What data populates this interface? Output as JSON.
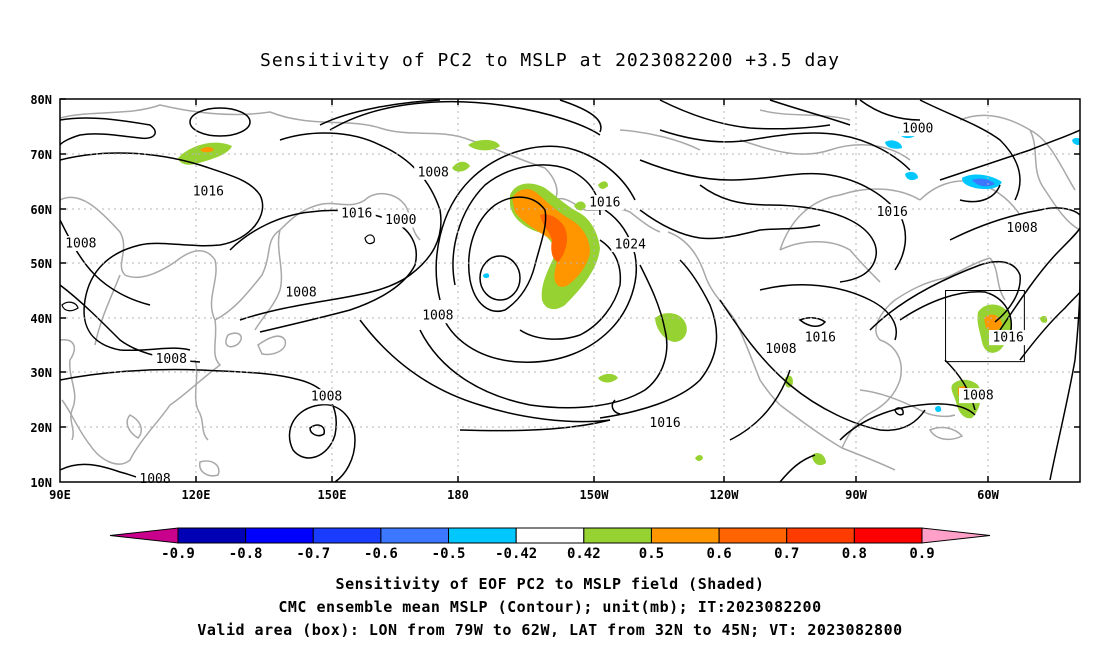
{
  "title": "Sensitivity of PC2 to MSLP at 2023082200 +3.5 day",
  "lat_labels": [
    "80N",
    "70N",
    "60N",
    "50N",
    "40N",
    "30N",
    "20N",
    "10N"
  ],
  "lon_labels": [
    "90E",
    "120E",
    "150E",
    "180",
    "150W",
    "120W",
    "90W",
    "60W"
  ],
  "contour_labels": [
    {
      "text": "1000",
      "lon": -85,
      "lat": 74.5
    },
    {
      "text": "1008",
      "lon": 170.5,
      "lat": 66.5
    },
    {
      "text": "1016",
      "lon": 122,
      "lat": 63
    },
    {
      "text": "1016",
      "lon": 154,
      "lat": 59
    },
    {
      "text": "1016",
      "lon": -152.5,
      "lat": 61
    },
    {
      "text": "1016",
      "lon": -90.5,
      "lat": 59.3
    },
    {
      "text": "1008",
      "lon": -62.5,
      "lat": 56.3
    },
    {
      "text": "1000",
      "lon": 163.5,
      "lat": 57.8
    },
    {
      "text": "1024",
      "lon": -147,
      "lat": 53.3
    },
    {
      "text": "1008",
      "lon": 94.5,
      "lat": 53.5
    },
    {
      "text": "1008",
      "lon": 142,
      "lat": 44.5
    },
    {
      "text": "1008",
      "lon": 171.5,
      "lat": 40.3
    },
    {
      "text": "1016",
      "lon": -65.5,
      "lat": 36.3
    },
    {
      "text": "1016",
      "lon": -106,
      "lat": 36.3
    },
    {
      "text": "1008",
      "lon": -114.5,
      "lat": 34.2
    },
    {
      "text": "1008",
      "lon": 114,
      "lat": 32.4
    },
    {
      "text": "1008",
      "lon": 147.5,
      "lat": 25.5
    },
    {
      "text": "1008",
      "lon": -72,
      "lat": 25.7
    },
    {
      "text": "1016",
      "lon": -139.5,
      "lat": 20.7
    },
    {
      "text": "1008",
      "lon": 110.5,
      "lat": 10.5
    }
  ],
  "box_label": "1016",
  "colorbar": {
    "labels": [
      "-0.9",
      "-0.8",
      "-0.7",
      "-0.6",
      "-0.5",
      "-0.42",
      "0.42",
      "0.5",
      "0.6",
      "0.7",
      "0.8",
      "0.9"
    ],
    "colors": [
      "#0000b4",
      "#0000ff",
      "#1a3cff",
      "#3c78ff",
      "#00c8ff",
      "#ffffff",
      "#96d232",
      "#ff9600",
      "#ff6400",
      "#ff3c00",
      "#ff0000"
    ],
    "low_extend_color": "#c8008c",
    "high_extend_color": "#ffa0c8"
  },
  "valid_box": {
    "lon_min": -79,
    "lon_max": -62,
    "lat_min": 32,
    "lat_max": 45
  },
  "captions": [
    "Sensitivity of EOF PC2 to MSLP field (Shaded)",
    "CMC ensemble mean MSLP (Contour); unit(mb); IT:2023082200",
    "Valid area (box): LON from 79W to 62W, LAT from 32N to 45N; VT: 2023082800"
  ]
}
